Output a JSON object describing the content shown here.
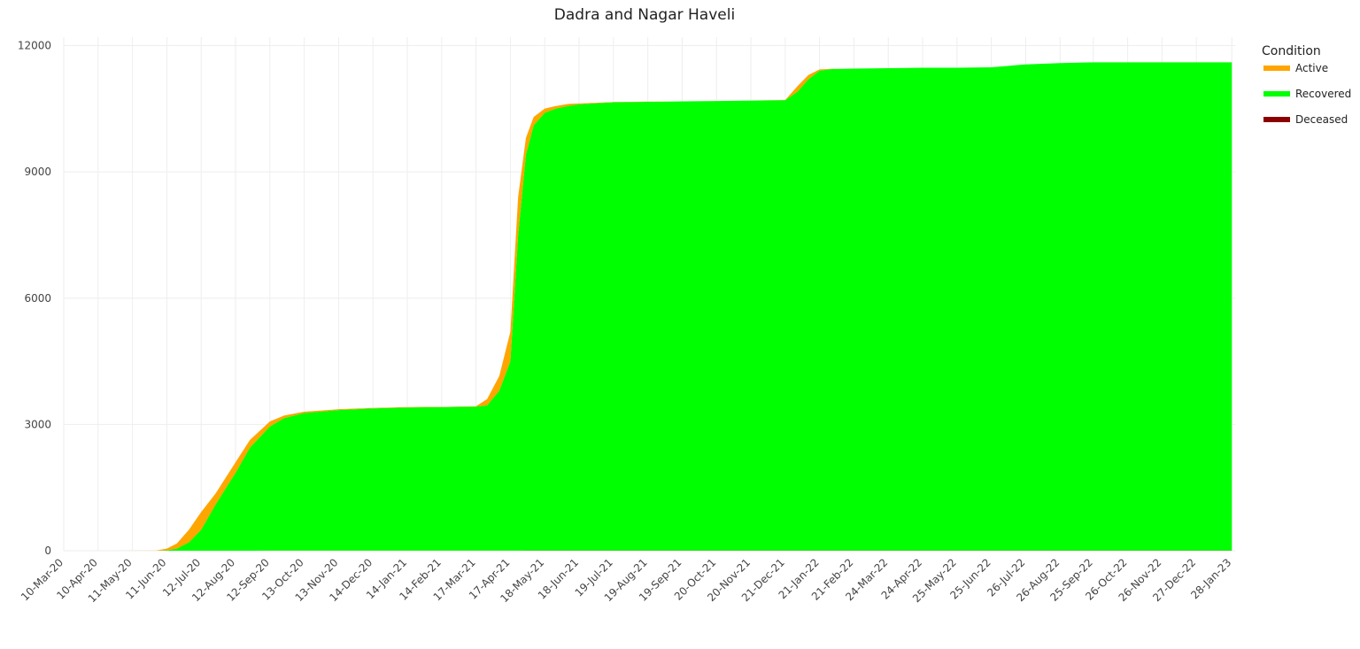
{
  "chart_data": {
    "type": "area",
    "stacked": true,
    "title": "Dadra and Nagar Haveli",
    "xlabel": "",
    "ylabel": "",
    "ylim": [
      0,
      12200
    ],
    "yticks": [
      0,
      3000,
      6000,
      9000,
      12000
    ],
    "yticklabels": [
      "0",
      "3000",
      "6000",
      "9000",
      "12000"
    ],
    "xlim": [
      "2020-03-10",
      "2023-01-31"
    ],
    "xticks": [
      "2020-03-10",
      "2020-04-10",
      "2020-05-11",
      "2020-06-11",
      "2020-07-12",
      "2020-08-12",
      "2020-09-12",
      "2020-10-13",
      "2020-11-13",
      "2020-12-14",
      "2021-01-14",
      "2021-02-14",
      "2021-03-17",
      "2021-04-17",
      "2021-05-18",
      "2021-06-18",
      "2021-07-19",
      "2021-08-19",
      "2021-09-19",
      "2021-10-20",
      "2021-11-20",
      "2021-12-21",
      "2022-01-21",
      "2022-02-21",
      "2022-03-24",
      "2022-04-24",
      "2022-05-25",
      "2022-06-25",
      "2022-07-26",
      "2022-08-26",
      "2022-09-25",
      "2022-10-26",
      "2022-11-26",
      "2022-12-27",
      "2023-01-28"
    ],
    "xticklabels": [
      "10-Mar-20",
      "10-Apr-20",
      "11-May-20",
      "11-Jun-20",
      "12-Jul-20",
      "12-Aug-20",
      "12-Sep-20",
      "13-Oct-20",
      "13-Nov-20",
      "14-Dec-20",
      "14-Jan-21",
      "14-Feb-21",
      "17-Mar-21",
      "17-Apr-21",
      "18-May-21",
      "18-Jun-21",
      "19-Jul-21",
      "19-Aug-21",
      "19-Sep-21",
      "20-Oct-21",
      "20-Nov-21",
      "21-Dec-21",
      "21-Jan-22",
      "21-Feb-22",
      "24-Mar-22",
      "24-Apr-22",
      "25-May-22",
      "25-Jun-22",
      "26-Jul-22",
      "26-Aug-22",
      "25-Sep-22",
      "26-Oct-22",
      "26-Nov-22",
      "27-Dec-22",
      "28-Jan-23"
    ],
    "legend": {
      "title": "Condition",
      "position": "top-right"
    },
    "grid": true,
    "x": [
      "2020-03-10",
      "2020-06-01",
      "2020-06-11",
      "2020-06-20",
      "2020-07-01",
      "2020-07-12",
      "2020-07-25",
      "2020-08-12",
      "2020-08-25",
      "2020-09-12",
      "2020-09-25",
      "2020-10-13",
      "2020-11-13",
      "2020-12-14",
      "2021-01-14",
      "2021-02-14",
      "2021-03-17",
      "2021-03-27",
      "2021-04-07",
      "2021-04-17",
      "2021-04-24",
      "2021-05-01",
      "2021-05-08",
      "2021-05-18",
      "2021-05-28",
      "2021-06-08",
      "2021-06-18",
      "2021-07-19",
      "2021-08-19",
      "2021-09-19",
      "2021-10-20",
      "2021-11-20",
      "2021-12-21",
      "2022-01-01",
      "2022-01-11",
      "2022-01-21",
      "2022-02-01",
      "2022-02-11",
      "2022-02-21",
      "2022-03-24",
      "2022-04-24",
      "2022-05-25",
      "2022-06-25",
      "2022-07-26",
      "2022-08-26",
      "2022-09-25",
      "2022-10-26",
      "2022-11-26",
      "2022-12-27",
      "2023-01-28"
    ],
    "series": [
      {
        "name": "Deceased",
        "color": "#8b0000",
        "values": [
          0,
          0,
          0,
          0,
          0,
          0,
          0,
          1,
          1,
          2,
          2,
          2,
          2,
          2,
          2,
          2,
          2,
          2,
          2,
          2,
          3,
          4,
          4,
          4,
          4,
          4,
          4,
          4,
          4,
          4,
          4,
          4,
          4,
          4,
          4,
          4,
          4,
          4,
          4,
          4,
          4,
          4,
          4,
          4,
          4,
          4,
          4,
          4,
          4,
          4
        ]
      },
      {
        "name": "Recovered",
        "color": "#00ff00",
        "values": [
          0,
          0,
          10,
          50,
          200,
          500,
          1100,
          1850,
          2450,
          2950,
          3150,
          3270,
          3340,
          3380,
          3400,
          3410,
          3420,
          3450,
          3800,
          4500,
          7500,
          9400,
          10100,
          10400,
          10500,
          10560,
          10600,
          10650,
          10660,
          10670,
          10680,
          10690,
          10700,
          10900,
          11200,
          11400,
          11440,
          11445,
          11450,
          11460,
          11470,
          11470,
          11480,
          11550,
          11580,
          11600,
          11600,
          11600,
          11600,
          11600
        ]
      },
      {
        "name": "Active",
        "color": "#ffa500",
        "values": [
          0,
          2,
          40,
          120,
          300,
          420,
          260,
          250,
          180,
          120,
          60,
          30,
          20,
          10,
          10,
          5,
          10,
          150,
          350,
          700,
          900,
          400,
          200,
          100,
          60,
          50,
          20,
          5,
          5,
          0,
          0,
          0,
          5,
          130,
          100,
          30,
          5,
          0,
          0,
          0,
          0,
          0,
          0,
          0,
          0,
          0,
          0,
          0,
          0,
          0
        ]
      }
    ],
    "legend_order": [
      "Active",
      "Recovered",
      "Deceased"
    ]
  }
}
